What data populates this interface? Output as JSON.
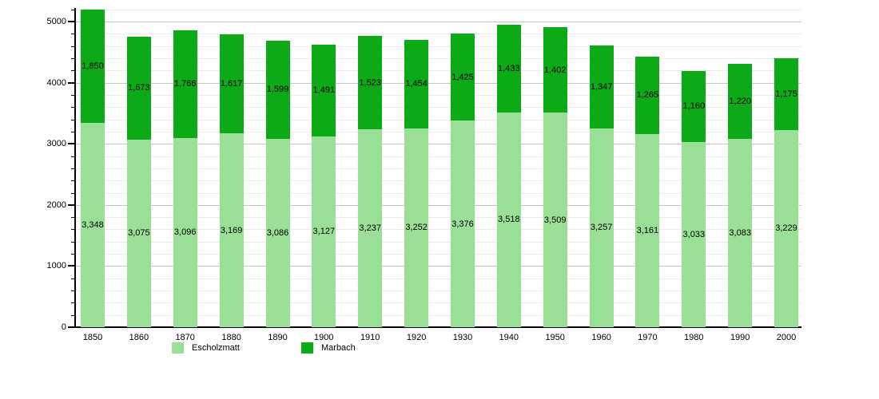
{
  "chart_data": {
    "type": "bar",
    "stacked": true,
    "title": "",
    "xlabel": "",
    "ylabel": "",
    "categories": [
      "1850",
      "1860",
      "1870",
      "1880",
      "1890",
      "1900",
      "1910",
      "1920",
      "1930",
      "1940",
      "1950",
      "1960",
      "1970",
      "1980",
      "1990",
      "2000"
    ],
    "series": [
      {
        "name": "Escholzmatt",
        "color": "#99df96",
        "values": [
          3348,
          3075,
          3096,
          3169,
          3086,
          3127,
          3237,
          3252,
          3376,
          3518,
          3509,
          3257,
          3161,
          3033,
          3083,
          3229
        ],
        "value_labels": [
          "3,348",
          "3,075",
          "3,096",
          "3,169",
          "3,086",
          "3,127",
          "3,237",
          "3,252",
          "3,376",
          "3,518",
          "3,509",
          "3,257",
          "3,161",
          "3,033",
          "3,083",
          "3,229"
        ]
      },
      {
        "name": "Marbach",
        "color": "#0caa16",
        "values": [
          1850,
          1673,
          1766,
          1617,
          1599,
          1491,
          1523,
          1454,
          1425,
          1433,
          1402,
          1347,
          1265,
          1160,
          1220,
          1175
        ],
        "value_labels": [
          "1,850",
          "1,673",
          "1,766",
          "1,617",
          "1,599",
          "1,491",
          "1,523",
          "1,454",
          "1,425",
          "1,433",
          "1,402",
          "1,347",
          "1,265",
          "1,160",
          "1,220",
          "1,175"
        ]
      }
    ],
    "ylim": [
      0,
      5224
    ],
    "y_ticks": [
      0,
      1000,
      2000,
      3000,
      4000,
      5000
    ],
    "y_tick_labels": [
      "0",
      "1000",
      "2000",
      "3000",
      "4000",
      "5000"
    ],
    "y_minor_step": 200,
    "grid": true,
    "gridline_minor_color": "#ececec",
    "gridline_major_color": "#c6c6c6",
    "axis_color": "#000000",
    "legend_position": "bottom",
    "legend": [
      {
        "label": "Escholzmatt",
        "color": "#99df96"
      },
      {
        "label": "Marbach",
        "color": "#0caa16"
      }
    ]
  }
}
